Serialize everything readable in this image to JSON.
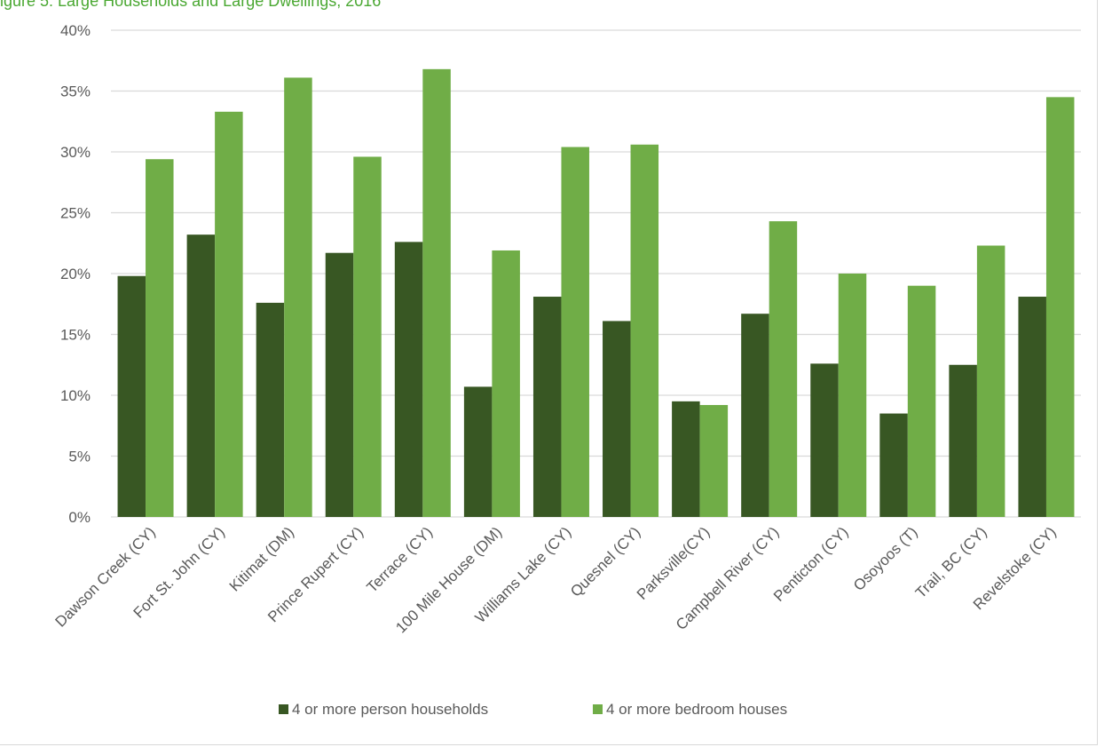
{
  "caption": "igure 5: Large Households and Large Dwellings, 2016",
  "colors": {
    "households": "#385723",
    "bedrooms": "#70ad47",
    "grid": "#d9d9d9",
    "text": "#595959"
  },
  "chart_data": {
    "type": "bar",
    "title": "",
    "xlabel": "",
    "ylabel": "",
    "ylim": [
      0,
      40
    ],
    "yticks": [
      "0%",
      "5%",
      "10%",
      "15%",
      "20%",
      "25%",
      "30%",
      "35%",
      "40%"
    ],
    "grid": true,
    "legend_position": "bottom",
    "categories": [
      "Dawson Creek (CY)",
      "Fort St. John (CY)",
      "Kitimat (DM)",
      "Prince Rupert (CY)",
      "Terrace (CY)",
      "100 Mile House (DM)",
      "Williams Lake (CY)",
      "Quesnel (CY)",
      "Parksville(CY)",
      "Campbell River (CY)",
      "Penticton (CY)",
      "Osoyoos (T)",
      "Trail, BC (CY)",
      "Revelstoke (CY)"
    ],
    "series": [
      {
        "name": "4 or more person households",
        "color": "#385723",
        "values": [
          19.8,
          23.2,
          17.6,
          21.7,
          22.6,
          10.7,
          18.1,
          16.1,
          9.5,
          16.7,
          12.6,
          8.5,
          12.5,
          18.1
        ]
      },
      {
        "name": "4 or more bedroom houses",
        "color": "#70ad47",
        "values": [
          29.4,
          33.3,
          36.1,
          29.6,
          36.8,
          21.9,
          30.4,
          30.6,
          9.2,
          24.3,
          20.0,
          19.0,
          22.3,
          34.5
        ]
      }
    ]
  }
}
